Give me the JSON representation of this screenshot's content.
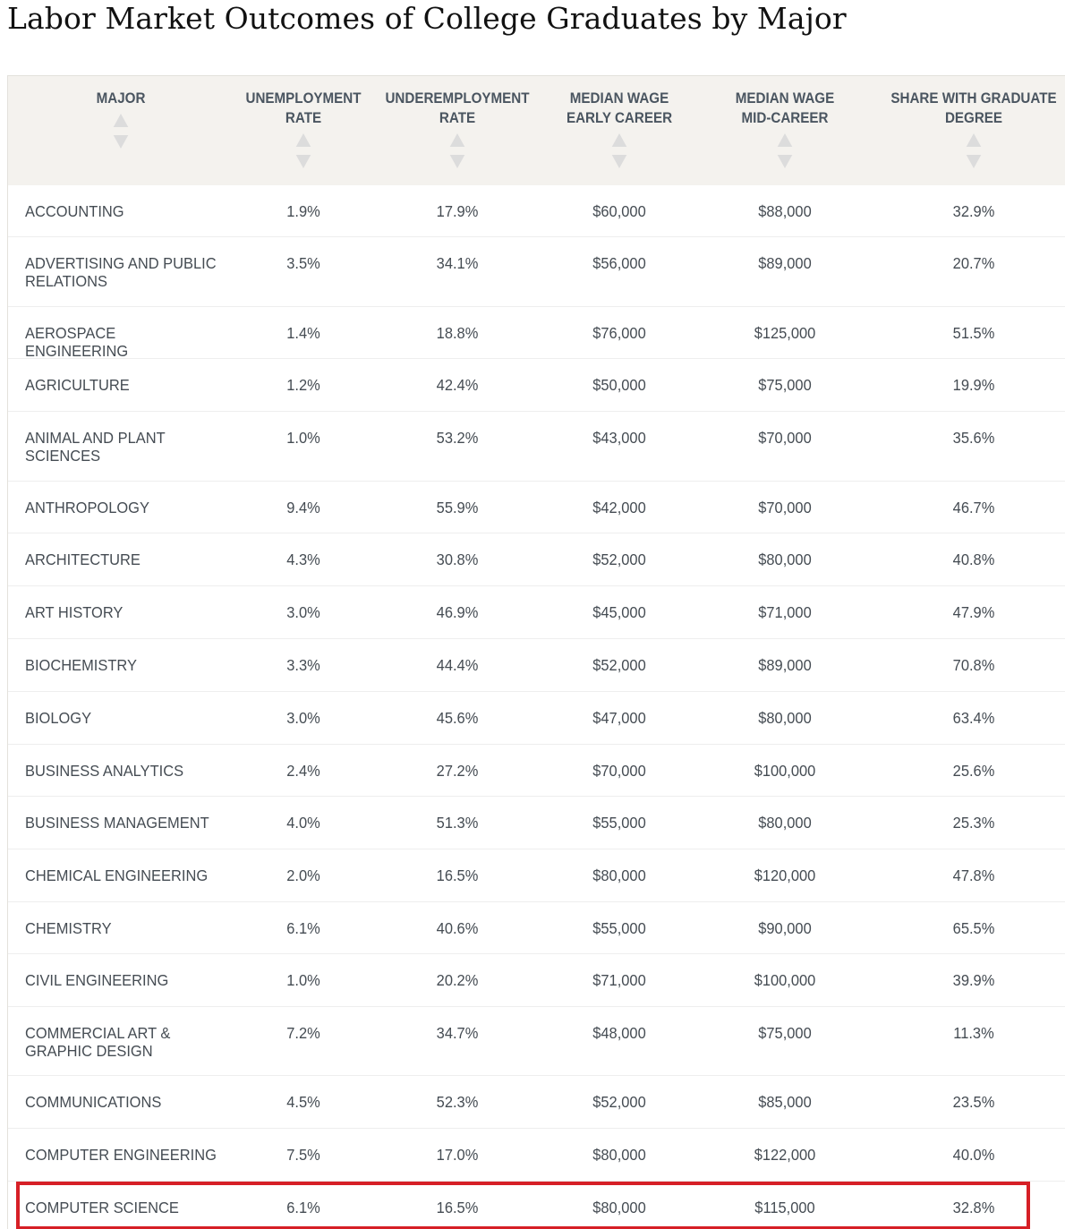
{
  "title": "Labor Market Outcomes of College Graduates by Major",
  "columns": [
    {
      "key": "major",
      "label": "MAJOR"
    },
    {
      "key": "unemployment",
      "label": "UNEMPLOYMENT\nRATE"
    },
    {
      "key": "underemployment",
      "label": "UNDEREMPLOYMENT\nRATE"
    },
    {
      "key": "wage_early",
      "label": "MEDIAN WAGE\nEARLY CAREER"
    },
    {
      "key": "wage_mid",
      "label": "MEDIAN WAGE\nMID-CAREER"
    },
    {
      "key": "grad_degree",
      "label": "SHARE WITH GRADUATE\nDEGREE"
    }
  ],
  "rows": [
    {
      "major": "ACCOUNTING",
      "unemployment": "1.9%",
      "underemployment": "17.9%",
      "wage_early": "$60,000",
      "wage_mid": "$88,000",
      "grad_degree": "32.9%"
    },
    {
      "major": "ADVERTISING AND PUBLIC\nRELATIONS",
      "unemployment": "3.5%",
      "underemployment": "34.1%",
      "wage_early": "$56,000",
      "wage_mid": "$89,000",
      "grad_degree": "20.7%"
    },
    {
      "major": "AEROSPACE ENGINEERING",
      "unemployment": "1.4%",
      "underemployment": "18.8%",
      "wage_early": "$76,000",
      "wage_mid": "$125,000",
      "grad_degree": "51.5%"
    },
    {
      "major": "AGRICULTURE",
      "unemployment": "1.2%",
      "underemployment": "42.4%",
      "wage_early": "$50,000",
      "wage_mid": "$75,000",
      "grad_degree": "19.9%"
    },
    {
      "major": "ANIMAL AND PLANT\nSCIENCES",
      "unemployment": "1.0%",
      "underemployment": "53.2%",
      "wage_early": "$43,000",
      "wage_mid": "$70,000",
      "grad_degree": "35.6%"
    },
    {
      "major": "ANTHROPOLOGY",
      "unemployment": "9.4%",
      "underemployment": "55.9%",
      "wage_early": "$42,000",
      "wage_mid": "$70,000",
      "grad_degree": "46.7%"
    },
    {
      "major": "ARCHITECTURE",
      "unemployment": "4.3%",
      "underemployment": "30.8%",
      "wage_early": "$52,000",
      "wage_mid": "$80,000",
      "grad_degree": "40.8%"
    },
    {
      "major": "ART HISTORY",
      "unemployment": "3.0%",
      "underemployment": "46.9%",
      "wage_early": "$45,000",
      "wage_mid": "$71,000",
      "grad_degree": "47.9%"
    },
    {
      "major": "BIOCHEMISTRY",
      "unemployment": "3.3%",
      "underemployment": "44.4%",
      "wage_early": "$52,000",
      "wage_mid": "$89,000",
      "grad_degree": "70.8%"
    },
    {
      "major": "BIOLOGY",
      "unemployment": "3.0%",
      "underemployment": "45.6%",
      "wage_early": "$47,000",
      "wage_mid": "$80,000",
      "grad_degree": "63.4%"
    },
    {
      "major": "BUSINESS ANALYTICS",
      "unemployment": "2.4%",
      "underemployment": "27.2%",
      "wage_early": "$70,000",
      "wage_mid": "$100,000",
      "grad_degree": "25.6%"
    },
    {
      "major": "BUSINESS MANAGEMENT",
      "unemployment": "4.0%",
      "underemployment": "51.3%",
      "wage_early": "$55,000",
      "wage_mid": "$80,000",
      "grad_degree": "25.3%"
    },
    {
      "major": "CHEMICAL ENGINEERING",
      "unemployment": "2.0%",
      "underemployment": "16.5%",
      "wage_early": "$80,000",
      "wage_mid": "$120,000",
      "grad_degree": "47.8%"
    },
    {
      "major": "CHEMISTRY",
      "unemployment": "6.1%",
      "underemployment": "40.6%",
      "wage_early": "$55,000",
      "wage_mid": "$90,000",
      "grad_degree": "65.5%"
    },
    {
      "major": "CIVIL ENGINEERING",
      "unemployment": "1.0%",
      "underemployment": "20.2%",
      "wage_early": "$71,000",
      "wage_mid": "$100,000",
      "grad_degree": "39.9%"
    },
    {
      "major": "COMMERCIAL ART &\nGRAPHIC DESIGN",
      "unemployment": "7.2%",
      "underemployment": "34.7%",
      "wage_early": "$48,000",
      "wage_mid": "$75,000",
      "grad_degree": "11.3%"
    },
    {
      "major": "COMMUNICATIONS",
      "unemployment": "4.5%",
      "underemployment": "52.3%",
      "wage_early": "$52,000",
      "wage_mid": "$85,000",
      "grad_degree": "23.5%"
    },
    {
      "major": "COMPUTER ENGINEERING",
      "unemployment": "7.5%",
      "underemployment": "17.0%",
      "wage_early": "$80,000",
      "wage_mid": "$122,000",
      "grad_degree": "40.0%"
    },
    {
      "major": "COMPUTER SCIENCE",
      "unemployment": "6.1%",
      "underemployment": "16.5%",
      "wage_early": "$80,000",
      "wage_mid": "$115,000",
      "grad_degree": "32.8%"
    }
  ],
  "highlighted_row": "COMPUTER SCIENCE",
  "colors": {
    "header_bg": "#f4f2ee",
    "text": "#454c53",
    "header_text": "#4a5560",
    "sort_arrow": "#dcdcdc",
    "highlight_border": "#d61f26"
  },
  "icons": {
    "sort_up": "triangle-up-icon",
    "sort_down": "triangle-down-icon"
  }
}
